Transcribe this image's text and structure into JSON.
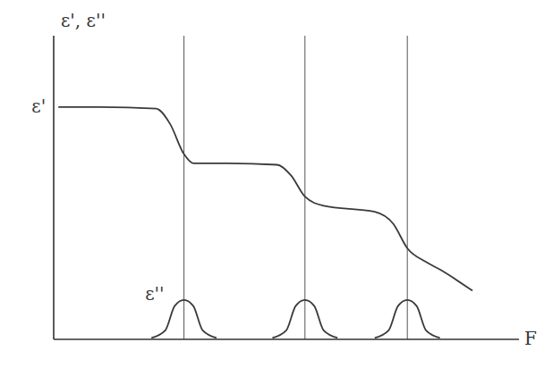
{
  "chart_data": {
    "type": "line",
    "x_label": "F",
    "y_label": "ε', ε''",
    "xlim": [
      0,
      10
    ],
    "ylim": [
      0,
      10
    ],
    "tick_labels": false,
    "grid": false,
    "relaxation_frequencies": [
      2.8,
      5.4,
      7.6
    ],
    "series": [
      {
        "name": "ε'",
        "color": "#3a3a3a",
        "x": [
          0.1,
          1.0,
          2.2,
          2.5,
          2.8,
          3.0,
          3.5,
          4.8,
          5.1,
          5.4,
          5.8,
          6.9,
          7.3,
          7.6,
          8.0,
          8.3,
          9.0
        ],
        "values": [
          7.65,
          7.65,
          7.6,
          7.1,
          6.1,
          5.8,
          5.8,
          5.75,
          5.4,
          4.7,
          4.4,
          4.2,
          3.8,
          3.0,
          2.55,
          2.3,
          1.6
        ]
      },
      {
        "name": "ε''",
        "color": "#3a3a3a",
        "x": [
          2.1,
          2.4,
          2.6,
          2.8,
          3.0,
          3.2,
          3.5,
          4.2,
          4.7,
          5.0,
          5.2,
          5.4,
          5.6,
          5.8,
          6.1,
          6.6,
          6.9,
          7.2,
          7.4,
          7.6,
          7.8,
          8.0,
          8.3
        ],
        "values": [
          0.05,
          0.3,
          1.1,
          1.3,
          1.1,
          0.3,
          0.05,
          null,
          0.05,
          0.3,
          1.1,
          1.3,
          1.1,
          0.3,
          0.05,
          null,
          0.05,
          0.3,
          1.1,
          1.3,
          1.1,
          0.3,
          0.05
        ]
      }
    ]
  }
}
